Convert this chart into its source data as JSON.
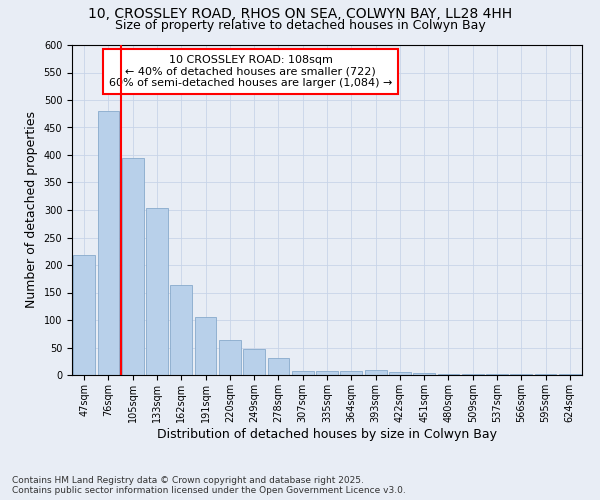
{
  "title1": "10, CROSSLEY ROAD, RHOS ON SEA, COLWYN BAY, LL28 4HH",
  "title2": "Size of property relative to detached houses in Colwyn Bay",
  "xlabel": "Distribution of detached houses by size in Colwyn Bay",
  "ylabel": "Number of detached properties",
  "categories": [
    "47sqm",
    "76sqm",
    "105sqm",
    "133sqm",
    "162sqm",
    "191sqm",
    "220sqm",
    "249sqm",
    "278sqm",
    "307sqm",
    "335sqm",
    "364sqm",
    "393sqm",
    "422sqm",
    "451sqm",
    "480sqm",
    "509sqm",
    "537sqm",
    "566sqm",
    "595sqm",
    "624sqm"
  ],
  "values": [
    218,
    480,
    395,
    303,
    163,
    105,
    64,
    48,
    31,
    7,
    7,
    7,
    10,
    5,
    3,
    2,
    1,
    1,
    1,
    1,
    1
  ],
  "bar_color": "#b8d0ea",
  "bar_edge_color": "#88aacc",
  "vline_color": "red",
  "annotation_lines": [
    "10 CROSSLEY ROAD: 108sqm",
    "← 40% of detached houses are smaller (722)",
    "60% of semi-detached houses are larger (1,084) →"
  ],
  "annotation_box_color": "white",
  "annotation_box_edge": "red",
  "ylim": [
    0,
    600
  ],
  "yticks": [
    0,
    50,
    100,
    150,
    200,
    250,
    300,
    350,
    400,
    450,
    500,
    550,
    600
  ],
  "grid_color": "#c8d4e8",
  "background_color": "#e8edf5",
  "footer": "Contains HM Land Registry data © Crown copyright and database right 2025.\nContains public sector information licensed under the Open Government Licence v3.0.",
  "title_fontsize": 10,
  "subtitle_fontsize": 9,
  "axis_label_fontsize": 9,
  "tick_fontsize": 7,
  "annotation_fontsize": 8,
  "footer_fontsize": 6.5
}
